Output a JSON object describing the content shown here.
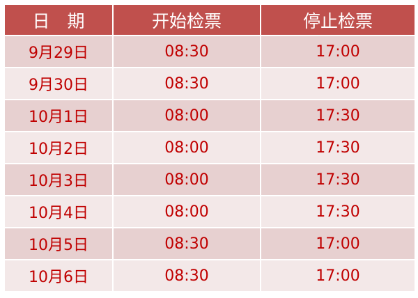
{
  "table": {
    "headers": [
      "日　期",
      "开始检票",
      "停止检票"
    ],
    "rows": [
      [
        "9月29日",
        "08:30",
        "17:00"
      ],
      [
        "9月30日",
        "08:30",
        "17:00"
      ],
      [
        "10月1日",
        "08:00",
        "17:30"
      ],
      [
        "10月2日",
        "08:00",
        "17:30"
      ],
      [
        "10月3日",
        "08:00",
        "17:30"
      ],
      [
        "10月4日",
        "08:00",
        "17:30"
      ],
      [
        "10月5日",
        "08:30",
        "17:00"
      ],
      [
        "10月6日",
        "08:30",
        "17:00"
      ]
    ]
  },
  "colors": {
    "header_bg": "#c0504d",
    "row_odd": "#e7d0d0",
    "row_even": "#f3e8e8",
    "text": "#c00000"
  }
}
